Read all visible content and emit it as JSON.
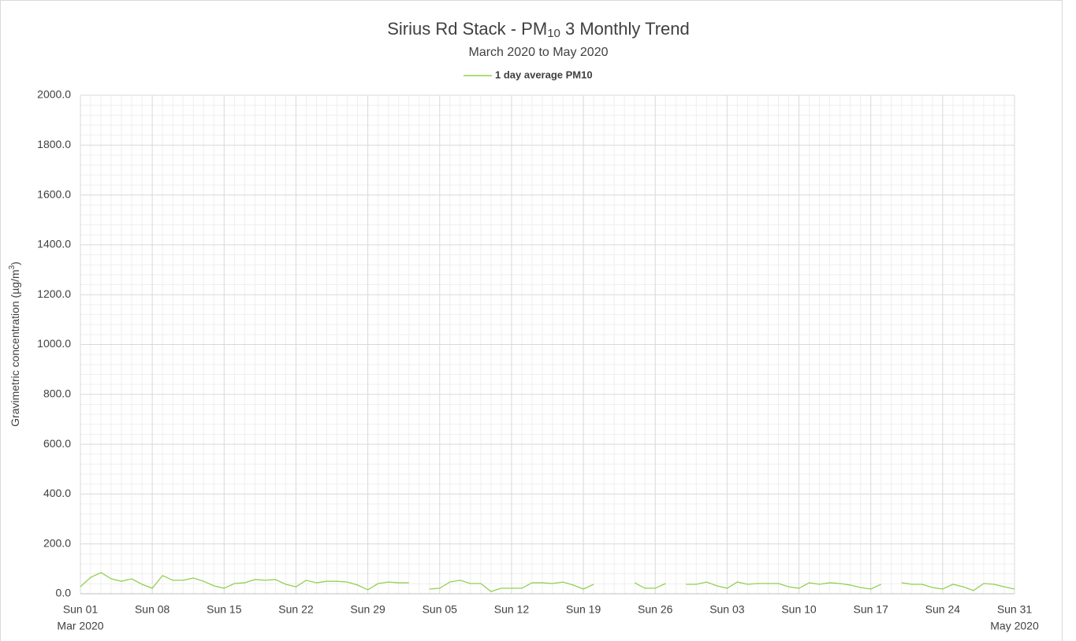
{
  "chart_data": {
    "type": "line",
    "title": {
      "main": "Sirius Rd Stack - PM",
      "subscript": "10",
      "rest": " 3 Monthly Trend"
    },
    "subtitle": "March 2020 to May 2020",
    "ylabel": {
      "main": "Gravimetric concentration (µg/m",
      "superscript": "3",
      "rest": ")"
    },
    "categories": [
      "Sun 01",
      null,
      null,
      null,
      null,
      null,
      null,
      "Sun 08",
      null,
      null,
      null,
      null,
      null,
      null,
      "Sun 15",
      null,
      null,
      null,
      null,
      null,
      null,
      "Sun 22",
      null,
      null,
      null,
      null,
      null,
      null,
      "Sun 29",
      null,
      null,
      null,
      null,
      null,
      null,
      "Sun 05",
      null,
      null,
      null,
      null,
      null,
      null,
      "Sun 12",
      null,
      null,
      null,
      null,
      null,
      null,
      "Sun 19",
      null,
      null,
      null,
      null,
      null,
      null,
      "Sun 26",
      null,
      null,
      null,
      null,
      null,
      null,
      "Sun 03",
      null,
      null,
      null,
      null,
      null,
      null,
      "Sun 10",
      null,
      null,
      null,
      null,
      null,
      null,
      "Sun 17",
      null,
      null,
      null,
      null,
      null,
      null,
      "Sun 24",
      null,
      null,
      null,
      null,
      null,
      null,
      "Sun 31"
    ],
    "period_labels": {
      "start": "Mar 2020",
      "end": "May 2020"
    },
    "series": [
      {
        "name": "1 day average PM10",
        "color": "#92d050",
        "values": [
          28,
          66,
          85,
          60,
          50,
          60,
          38,
          22,
          73,
          54,
          54,
          63,
          50,
          32,
          22,
          41,
          44,
          57,
          54,
          57,
          38,
          28,
          54,
          44,
          50,
          50,
          47,
          35,
          16,
          41,
          47,
          44,
          44,
          null,
          19,
          22,
          47,
          54,
          41,
          41,
          9,
          22,
          22,
          22,
          44,
          44,
          41,
          47,
          35,
          19,
          38,
          null,
          null,
          null,
          44,
          22,
          22,
          41,
          null,
          38,
          38,
          47,
          32,
          22,
          47,
          38,
          41,
          41,
          41,
          28,
          22,
          44,
          38,
          44,
          41,
          35,
          25,
          19,
          38,
          null,
          44,
          38,
          38,
          25,
          19,
          38,
          28,
          13,
          41,
          38,
          28,
          19
        ]
      }
    ],
    "ylim": [
      0,
      2000
    ],
    "yticks": [
      {
        "value": 0,
        "label": "0.0"
      },
      {
        "value": 200,
        "label": "200.0"
      },
      {
        "value": 400,
        "label": "400.0"
      },
      {
        "value": 600,
        "label": "600.0"
      },
      {
        "value": 800,
        "label": "800.0"
      },
      {
        "value": 1000,
        "label": "1000.0"
      },
      {
        "value": 1200,
        "label": "1200.0"
      },
      {
        "value": 1400,
        "label": "1400.0"
      },
      {
        "value": 1600,
        "label": "1600.0"
      },
      {
        "value": 1800,
        "label": "1800.0"
      },
      {
        "value": 2000,
        "label": "2000.0"
      }
    ],
    "grid": true,
    "minor_grid": true,
    "legend": "top"
  }
}
